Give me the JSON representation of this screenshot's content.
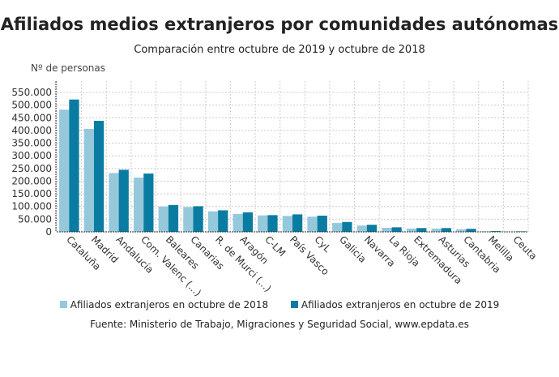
{
  "chart_data": {
    "type": "bar",
    "title": "Afiliados medios extranjeros por comunidades autónomas",
    "subtitle": "Comparación entre octubre de 2019 y octubre de 2018",
    "ylabel": "Nº de personas",
    "xlabel": "",
    "ylim": [
      0,
      550000
    ],
    "yticks": [
      "0",
      "50.000",
      "100.000",
      "150.000",
      "200.000",
      "250.000",
      "300.000",
      "350.000",
      "400.000",
      "450.000",
      "500.000",
      "550.000"
    ],
    "grid": true,
    "legend_position": "bottom",
    "categories": [
      "Cataluña",
      "Madrid",
      "Andalucía",
      "Com. Valenc (...)",
      "Baleares",
      "Canarias",
      "R. de Murci (...)",
      "Aragón",
      "C-LM",
      "País Vasco",
      "CyL",
      "Galicia",
      "Navarra",
      "La Rioja",
      "Extremadura",
      "Asturias",
      "Cantabria",
      "Melilla",
      "Ceuta"
    ],
    "series": [
      {
        "name": "Afiliados extranjeros en octubre de 2018",
        "color": "#96c8dc",
        "values": [
          482000,
          406000,
          232000,
          214000,
          100000,
          98000,
          81000,
          71000,
          65000,
          63000,
          60000,
          35000,
          25000,
          16000,
          13000,
          13000,
          10000,
          2000,
          1000
        ]
      },
      {
        "name": "Afiliados extranjeros en octubre de 2019",
        "color": "#0a7ca1",
        "values": [
          522000,
          438000,
          245000,
          230000,
          106000,
          101000,
          85000,
          77000,
          66000,
          69000,
          64000,
          39000,
          28000,
          18000,
          15000,
          15000,
          12000,
          3000,
          2000
        ]
      }
    ]
  },
  "source": "Fuente: Ministerio de Trabajo, Migraciones y Seguridad Social, www.epdata.es"
}
